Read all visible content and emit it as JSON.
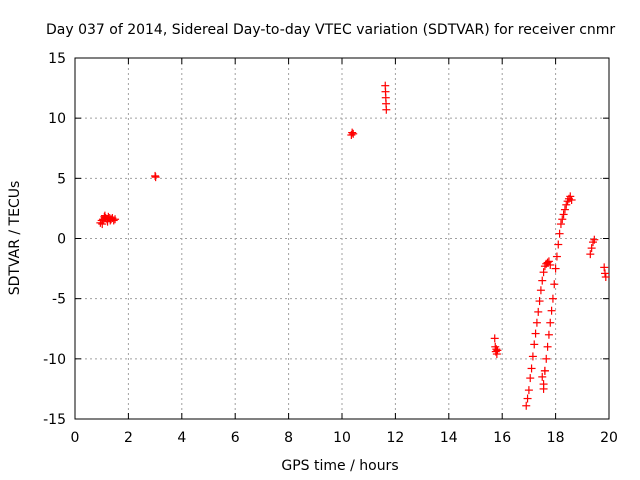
{
  "chart_data": {
    "type": "scatter",
    "title": "Day 037 of 2014, Sidereal Day-to-day VTEC variation (SDTVAR) for receiver cnmr",
    "xlabel": "GPS time / hours",
    "ylabel": "SDTVAR / TECUs",
    "xlim": [
      0,
      20
    ],
    "ylim": [
      -15,
      15
    ],
    "xticks": [
      0,
      2,
      4,
      6,
      8,
      10,
      12,
      14,
      16,
      18,
      20
    ],
    "yticks": [
      -15,
      -10,
      -5,
      0,
      5,
      10,
      15
    ],
    "x_tick_labels": [
      "0",
      "2",
      "4",
      "6",
      "8",
      "10",
      "12",
      "14",
      "16",
      "18",
      "20"
    ],
    "y_tick_labels": [
      "-15",
      "-10",
      "-5",
      "0",
      "5",
      "10",
      "15"
    ],
    "grid": true,
    "marker": "+",
    "color": "#ff0000",
    "series": [
      {
        "name": "SDTVAR",
        "x": [
          0.95,
          1.0,
          1.05,
          1.1,
          1.15,
          1.2,
          1.25,
          1.3,
          1.35,
          1.4,
          1.45,
          1.5,
          1.02,
          1.12,
          1.22,
          1.32,
          3.0,
          3.02,
          10.35,
          10.38,
          10.42,
          11.62,
          11.63,
          11.64,
          11.65,
          11.66,
          15.72,
          15.74,
          15.76,
          15.78,
          15.8,
          15.82,
          16.9,
          16.95,
          17.0,
          17.05,
          17.1,
          17.15,
          17.2,
          17.25,
          17.3,
          17.35,
          17.4,
          17.45,
          17.5,
          17.55,
          17.6,
          17.65,
          17.7,
          17.75,
          17.8,
          17.55,
          17.6,
          17.65,
          17.7,
          17.75,
          17.8,
          17.85,
          17.9,
          17.95,
          18.0,
          18.05,
          18.1,
          18.15,
          18.2,
          18.25,
          18.3,
          18.35,
          18.4,
          18.45,
          18.5,
          18.55,
          18.6,
          17.5,
          17.55,
          17.6,
          19.3,
          19.35,
          19.4,
          19.45,
          19.82,
          19.85,
          19.88
        ],
        "y": [
          1.3,
          1.5,
          1.6,
          1.8,
          1.7,
          1.6,
          1.8,
          1.7,
          1.6,
          1.7,
          1.5,
          1.6,
          1.2,
          1.9,
          1.4,
          1.5,
          5.2,
          5.1,
          8.6,
          8.8,
          8.7,
          12.7,
          12.2,
          11.7,
          11.2,
          10.7,
          -8.3,
          -9.0,
          -9.4,
          -9.2,
          -9.6,
          -9.3,
          -13.9,
          -13.3,
          -12.6,
          -11.6,
          -10.8,
          -9.8,
          -8.8,
          -7.9,
          -7.0,
          -6.1,
          -5.2,
          -4.3,
          -3.5,
          -2.8,
          -2.3,
          -2.1,
          -2.0,
          -1.9,
          -2.2,
          -12.1,
          -11.0,
          -10.0,
          -9.0,
          -8.0,
          -7.0,
          -6.0,
          -5.0,
          -3.8,
          -2.5,
          -1.5,
          -0.5,
          0.4,
          1.2,
          1.6,
          2.0,
          2.4,
          2.8,
          3.1,
          3.3,
          3.5,
          3.2,
          -11.5,
          -12.5,
          -11.0,
          -1.3,
          -0.8,
          -0.3,
          -0.1,
          -2.4,
          -2.9,
          -3.2
        ]
      }
    ]
  }
}
